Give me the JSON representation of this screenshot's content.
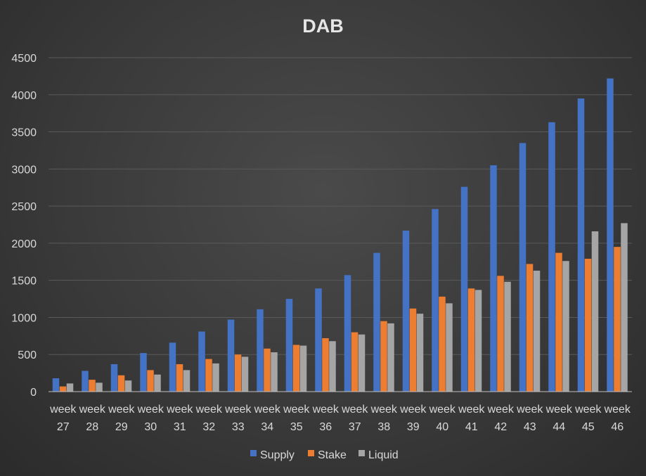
{
  "chart_data": {
    "type": "bar",
    "title": "DAB",
    "xlabel": "",
    "ylabel": "",
    "ylim": [
      0,
      4500
    ],
    "yticks": [
      0,
      500,
      1000,
      1500,
      2000,
      2500,
      3000,
      3500,
      4000,
      4500
    ],
    "grid": true,
    "legend_position": "bottom",
    "categories": [
      [
        "week",
        "27"
      ],
      [
        "week",
        "28"
      ],
      [
        "week",
        "29"
      ],
      [
        "week",
        "30"
      ],
      [
        "week",
        "31"
      ],
      [
        "week",
        "32"
      ],
      [
        "week",
        "33"
      ],
      [
        "week",
        "34"
      ],
      [
        "week",
        "35"
      ],
      [
        "week",
        "36"
      ],
      [
        "week",
        "37"
      ],
      [
        "week",
        "38"
      ],
      [
        "week",
        "39"
      ],
      [
        "week",
        "40"
      ],
      [
        "week",
        "41"
      ],
      [
        "week",
        "42"
      ],
      [
        "week",
        "43"
      ],
      [
        "week",
        "44"
      ],
      [
        "week",
        "45"
      ],
      [
        "week",
        "46"
      ]
    ],
    "series": [
      {
        "name": "Supply",
        "color": "#4472c4",
        "values": [
          180,
          280,
          370,
          520,
          660,
          810,
          970,
          1110,
          1250,
          1390,
          1570,
          1870,
          2170,
          2460,
          2760,
          3050,
          3350,
          3630,
          3950,
          4220
        ]
      },
      {
        "name": "Stake",
        "color": "#ed7d31",
        "values": [
          70,
          160,
          220,
          290,
          370,
          440,
          500,
          580,
          630,
          720,
          800,
          950,
          1120,
          1280,
          1390,
          1560,
          1720,
          1870,
          1790,
          1950
        ]
      },
      {
        "name": "Liquid",
        "color": "#a5a5a5",
        "values": [
          110,
          120,
          150,
          230,
          290,
          380,
          470,
          530,
          620,
          680,
          770,
          920,
          1050,
          1190,
          1370,
          1480,
          1630,
          1760,
          2160,
          2270
        ]
      }
    ]
  }
}
